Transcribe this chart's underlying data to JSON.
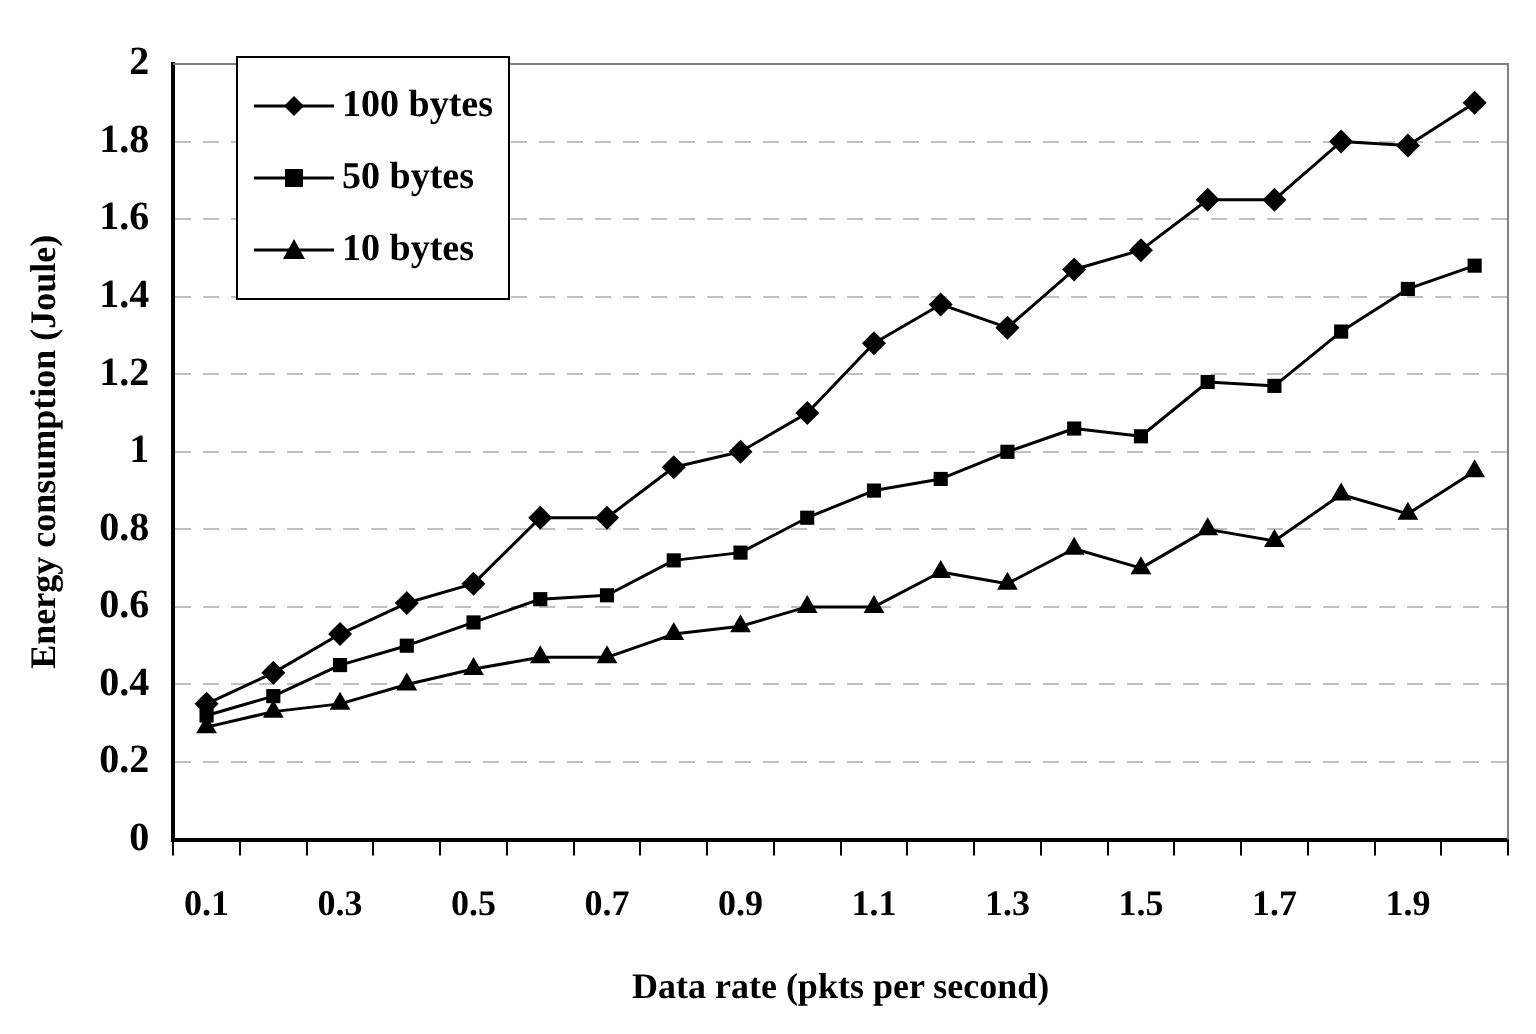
{
  "chart_data": {
    "type": "line",
    "xlabel": "Data rate (pkts per second)",
    "ylabel": "Energy consumption (Joule)",
    "categories": [
      "0.1",
      null,
      "0.3",
      null,
      "0.5",
      null,
      "0.7",
      null,
      "0.9",
      null,
      "1.1",
      null,
      "1.3",
      null,
      "1.5",
      null,
      "1.7",
      null,
      "1.9",
      null
    ],
    "series": [
      {
        "name": "100 bytes",
        "color": "#000000",
        "marker": "diamond",
        "values": [
          0.35,
          0.43,
          0.53,
          0.61,
          0.66,
          0.83,
          0.83,
          0.96,
          1.0,
          1.1,
          1.28,
          1.38,
          1.32,
          1.47,
          1.52,
          1.65,
          1.65,
          1.8,
          1.79,
          1.9
        ]
      },
      {
        "name": "50 bytes",
        "color": "#000000",
        "marker": "square",
        "values": [
          0.32,
          0.37,
          0.45,
          0.5,
          0.56,
          0.62,
          0.63,
          0.72,
          0.74,
          0.83,
          0.9,
          0.93,
          1.0,
          1.06,
          1.04,
          1.18,
          1.17,
          1.31,
          1.42,
          1.48
        ]
      },
      {
        "name": "10 bytes",
        "color": "#000000",
        "marker": "triangle",
        "values": [
          0.29,
          0.33,
          0.35,
          0.4,
          0.44,
          0.47,
          0.47,
          0.53,
          0.55,
          0.6,
          0.6,
          0.69,
          0.66,
          0.75,
          0.7,
          0.8,
          0.77,
          0.89,
          0.84,
          0.95
        ]
      }
    ],
    "ylim": [
      0,
      2
    ],
    "yticks": [
      0,
      0.2,
      0.4,
      0.6,
      0.8,
      1,
      1.2,
      1.4,
      1.6,
      1.8,
      2
    ],
    "grid": "y",
    "legend": "top left",
    "line_style": "solid"
  }
}
